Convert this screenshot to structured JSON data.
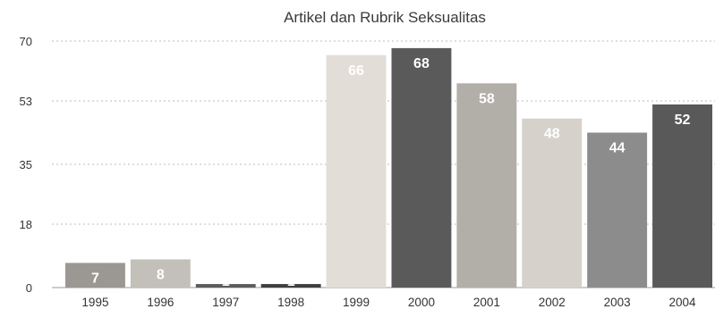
{
  "chart_data": {
    "type": "bar",
    "title": "Artikel dan Rubrik Seksualitas",
    "xlabel": "",
    "ylabel": "",
    "categories": [
      "1995",
      "1996",
      "1997",
      "1998",
      "1999",
      "2000",
      "2001",
      "2002",
      "2003",
      "2004"
    ],
    "values": [
      7,
      8,
      1,
      1,
      66,
      68,
      58,
      48,
      44,
      52
    ],
    "data_labels": [
      "7",
      "8",
      "1",
      "1",
      "66",
      "68",
      "58",
      "48",
      "44",
      "52"
    ],
    "ylim": [
      0,
      70
    ],
    "yticks": [
      0,
      18,
      35,
      53,
      70
    ],
    "grid": true,
    "legend": "none",
    "colors": [
      "#9b9792",
      "#c3bfb9",
      "#5c5c5c",
      "#3e3e3e",
      "#e2ddd6",
      "#5a5a5a",
      "#b2aea8",
      "#d6d2cb",
      "#8c8c8c",
      "#595959"
    ],
    "label_colors": [
      "#ffffff",
      "#ffffff",
      "#ffffff",
      "#ffffff",
      "#ffffff",
      "#ffffff",
      "#ffffff",
      "#ffffff",
      "#ffffff",
      "#ffffff"
    ]
  }
}
